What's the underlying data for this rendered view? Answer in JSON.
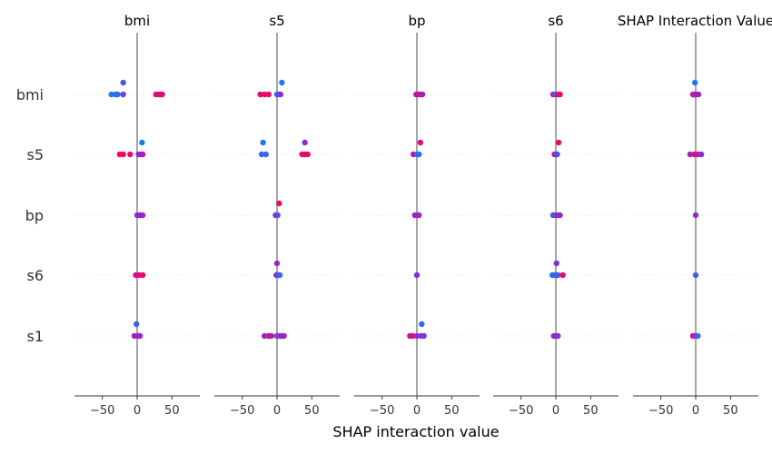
{
  "chart_data": {
    "type": "scatter",
    "title": "",
    "xlabel": "SHAP interaction value",
    "suptitle": "SHAP Interaction Value",
    "features": [
      "bmi",
      "s5",
      "bp",
      "s6",
      "s1"
    ],
    "panels": [
      "bmi",
      "s5",
      "bp",
      "s6",
      ""
    ],
    "xlim": [
      -90,
      90
    ],
    "xticks": [
      -50,
      0,
      50
    ],
    "xtick_labels": [
      "−50",
      "0",
      "50"
    ],
    "grid": false,
    "colors": {
      "low": "#008bfb",
      "mid": "#8a2bd6",
      "high": "#ff0052",
      "zero_line": "#888888",
      "dots_grid": "#dddddd"
    },
    "points": [
      [
        [
          [
            -37,
            0,
            0.1
          ],
          [
            -31,
            0,
            0.15
          ],
          [
            -28,
            0,
            0.2
          ],
          [
            -20,
            0,
            0.35
          ],
          [
            -20,
            -1,
            0.3
          ],
          [
            27,
            0,
            0.85
          ],
          [
            31,
            0,
            0.8
          ],
          [
            34,
            0,
            0.9
          ],
          [
            36,
            0,
            0.85
          ]
        ],
        [
          [
            -25,
            0,
            0.9
          ],
          [
            -20,
            0,
            0.95
          ],
          [
            -10,
            0,
            0.9
          ],
          [
            2,
            0,
            0.5
          ],
          [
            6,
            0,
            0.6
          ],
          [
            8,
            0,
            0.7
          ],
          [
            7,
            -1,
            0.05
          ]
        ],
        [
          [
            0,
            0,
            0.5
          ],
          [
            4,
            0,
            0.6
          ],
          [
            8,
            0,
            0.55
          ]
        ],
        [
          [
            -2,
            0,
            0.8
          ],
          [
            3,
            0,
            0.85
          ],
          [
            8,
            0,
            0.9
          ]
        ],
        [
          [
            -4,
            0,
            0.6
          ],
          [
            -1,
            -1,
            0.2
          ],
          [
            1,
            0,
            0.5
          ],
          [
            4,
            0,
            0.55
          ]
        ]
      ],
      [
        [
          [
            -24,
            0,
            0.9
          ],
          [
            -18,
            0,
            0.85
          ],
          [
            -12,
            0,
            0.95
          ],
          [
            0,
            0,
            0.1
          ],
          [
            3,
            0,
            0.3
          ],
          [
            5,
            0,
            0.5
          ],
          [
            7,
            -1,
            0.1
          ]
        ],
        [
          [
            -22,
            0,
            0.2
          ],
          [
            -16,
            0,
            0.15
          ],
          [
            -20,
            -1,
            0.1
          ],
          [
            36,
            0,
            0.9
          ],
          [
            40,
            0,
            0.85
          ],
          [
            44,
            0,
            0.9
          ],
          [
            40,
            -1,
            0.5
          ]
        ],
        [
          [
            -2,
            0,
            0.5
          ],
          [
            1,
            0,
            0.3
          ],
          [
            3,
            -1,
            0.95
          ]
        ],
        [
          [
            -1,
            0,
            0.6
          ],
          [
            2,
            0,
            0.3
          ],
          [
            4,
            0,
            0.2
          ],
          [
            0,
            -1,
            0.55
          ]
        ],
        [
          [
            -18,
            0,
            0.6
          ],
          [
            -12,
            0,
            0.65
          ],
          [
            -8,
            0,
            0.8
          ],
          [
            0,
            0,
            0.5
          ],
          [
            2,
            0,
            0.3
          ],
          [
            6,
            0,
            0.6
          ],
          [
            10,
            0,
            0.55
          ]
        ]
      ],
      [
        [
          [
            -1,
            0,
            0.7
          ],
          [
            2,
            0,
            0.8
          ],
          [
            5,
            0,
            0.75
          ],
          [
            8,
            0,
            0.6
          ]
        ],
        [
          [
            -5,
            0,
            0.8
          ],
          [
            0,
            0,
            0.2
          ],
          [
            3,
            0,
            0.15
          ],
          [
            5,
            -1,
            0.85
          ]
        ],
        [
          [
            -3,
            0,
            0.5
          ],
          [
            0,
            0,
            0.6
          ],
          [
            3,
            0,
            0.55
          ]
        ],
        [
          [
            0,
            0,
            0.5
          ]
        ],
        [
          [
            -10,
            0,
            0.85
          ],
          [
            -6,
            0,
            0.8
          ],
          [
            0,
            0,
            0.5
          ],
          [
            6,
            0,
            0.5
          ],
          [
            10,
            0,
            0.45
          ],
          [
            7,
            -1,
            0.2
          ]
        ]
      ],
      [
        [
          [
            -4,
            0,
            0.6
          ],
          [
            0,
            0,
            0.2
          ],
          [
            3,
            0,
            0.85
          ],
          [
            6,
            0,
            0.95
          ]
        ],
        [
          [
            -2,
            0,
            0.7
          ],
          [
            1,
            0,
            0.6
          ],
          [
            4,
            -1,
            0.9
          ],
          [
            2,
            0,
            0.3
          ]
        ],
        [
          [
            -4,
            0,
            0.3
          ],
          [
            0,
            0,
            0.35
          ],
          [
            3,
            0,
            0.6
          ],
          [
            6,
            0,
            0.5
          ]
        ],
        [
          [
            -5,
            0,
            0.15
          ],
          [
            -2,
            0,
            0.2
          ],
          [
            0,
            0,
            0.2
          ],
          [
            3,
            0,
            0.25
          ],
          [
            10,
            0,
            0.95
          ],
          [
            1,
            -1,
            0.5
          ]
        ],
        [
          [
            -3,
            0,
            0.5
          ],
          [
            0,
            0,
            0.55
          ],
          [
            3,
            0,
            0.5
          ]
        ]
      ],
      [
        [
          [
            -4,
            0,
            0.8
          ],
          [
            0,
            0,
            0.5
          ],
          [
            4,
            0,
            0.55
          ],
          [
            -1,
            -1,
            0.1
          ],
          [
            -1,
            0,
            0.6
          ]
        ],
        [
          [
            -8,
            0,
            0.6
          ],
          [
            -2,
            0,
            0.85
          ],
          [
            3,
            0,
            0.7
          ],
          [
            8,
            0,
            0.5
          ]
        ],
        [
          [
            0,
            0,
            0.5
          ]
        ],
        [
          [
            0,
            0,
            0.2
          ]
        ],
        [
          [
            -4,
            0,
            0.8
          ],
          [
            0,
            0,
            0.55
          ],
          [
            3,
            0,
            0.2
          ]
        ]
      ]
    ]
  }
}
